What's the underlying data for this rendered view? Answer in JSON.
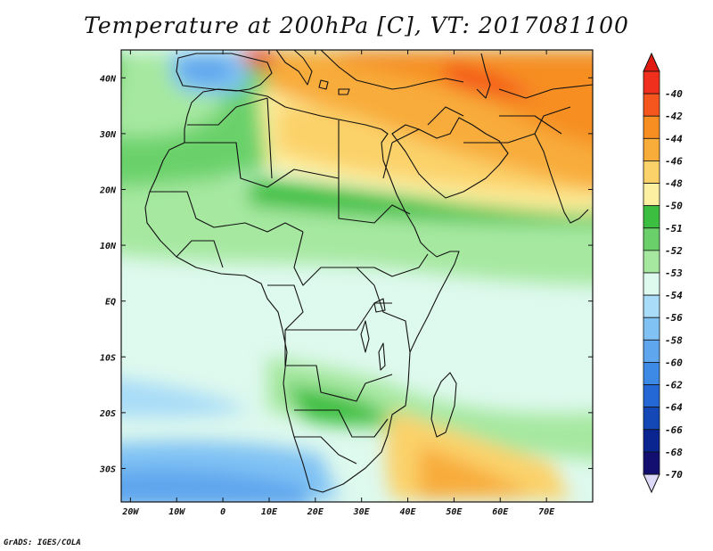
{
  "title": "Temperature at 200hPa [C], VT: 2017081100",
  "credit": "GrADS: IGES/COLA",
  "map": {
    "lon_range": [
      -22,
      80
    ],
    "lat_range": [
      -36,
      45
    ],
    "x_ticks": [
      {
        "lon": -20,
        "label": "20W"
      },
      {
        "lon": -10,
        "label": "10W"
      },
      {
        "lon": 0,
        "label": "0"
      },
      {
        "lon": 10,
        "label": "10E"
      },
      {
        "lon": 20,
        "label": "20E"
      },
      {
        "lon": 30,
        "label": "30E"
      },
      {
        "lon": 40,
        "label": "40E"
      },
      {
        "lon": 50,
        "label": "50E"
      },
      {
        "lon": 60,
        "label": "60E"
      },
      {
        "lon": 70,
        "label": "70E"
      }
    ],
    "y_ticks": [
      {
        "lat": 40,
        "label": "40N"
      },
      {
        "lat": 30,
        "label": "30N"
      },
      {
        "lat": 20,
        "label": "20N"
      },
      {
        "lat": 10,
        "label": "10N"
      },
      {
        "lat": 0,
        "label": "EQ"
      },
      {
        "lat": -10,
        "label": "10S"
      },
      {
        "lat": -20,
        "label": "20S"
      },
      {
        "lat": -30,
        "label": "30S"
      }
    ]
  },
  "colorbar": {
    "top_color": "#e01a10",
    "bottom_color": "#dcd8f8",
    "bins": [
      {
        "label": "-40",
        "color": "#f0301c"
      },
      {
        "label": "-42",
        "color": "#f4561e"
      },
      {
        "label": "-44",
        "color": "#f68e22"
      },
      {
        "label": "-46",
        "color": "#f8ac3a"
      },
      {
        "label": "-48",
        "color": "#fbd26a"
      },
      {
        "label": "-50",
        "color": "#fdf0a0"
      },
      {
        "label": "-51",
        "color": "#3cbf40"
      },
      {
        "label": "-52",
        "color": "#6ad16a"
      },
      {
        "label": "-53",
        "color": "#a6e8a0"
      },
      {
        "label": "-54",
        "color": "#def9ee"
      },
      {
        "label": "-56",
        "color": "#a8dcf8"
      },
      {
        "label": "-58",
        "color": "#80c2f4"
      },
      {
        "label": "-60",
        "color": "#5ea6ee"
      },
      {
        "label": "-62",
        "color": "#3c8ae6"
      },
      {
        "label": "-64",
        "color": "#2468d6"
      },
      {
        "label": "-66",
        "color": "#1448b6"
      },
      {
        "label": "-68",
        "color": "#0a2490"
      },
      {
        "label": "-70",
        "color": "#120f70"
      }
    ]
  }
}
